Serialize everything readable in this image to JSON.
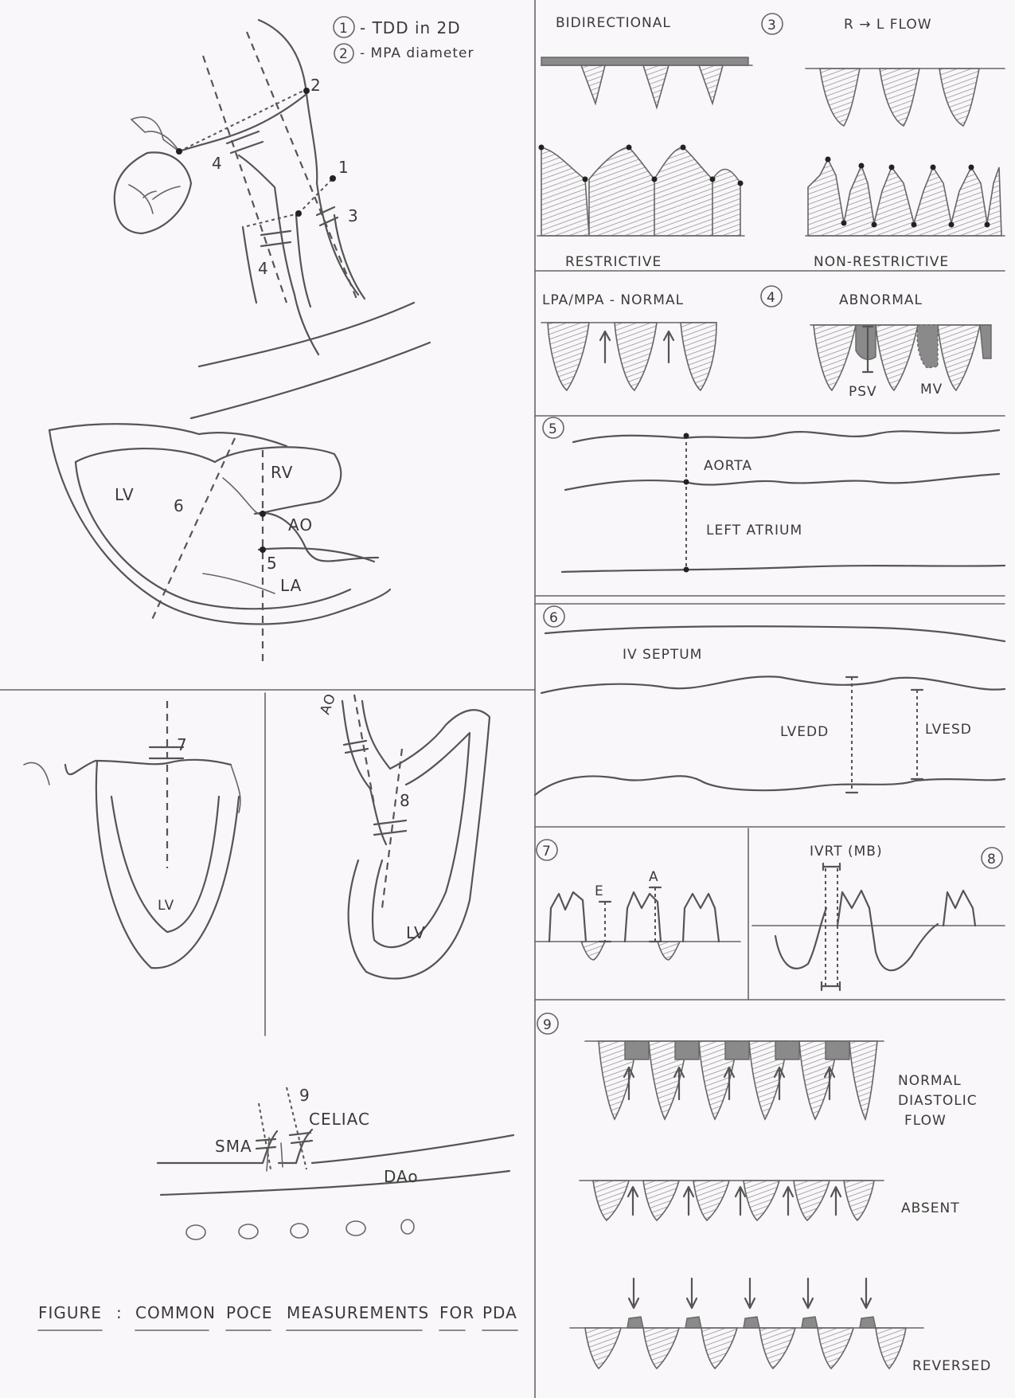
{
  "legend": {
    "item1_num": "1",
    "item1": "- TDD in 2D",
    "item2_num": "2",
    "item2": "- MPA diameter"
  },
  "arch_panel": {
    "m4a": "4",
    "m2": "2",
    "m1": "1",
    "m3": "3",
    "m4b": "4"
  },
  "heart_panel": {
    "lv": "LV",
    "rv": "RV",
    "ao": "AO",
    "la": "LA",
    "m6": "6",
    "m5": "5"
  },
  "apical_left": {
    "m7": "7",
    "lv": "LV"
  },
  "apical_right": {
    "ao": "AO",
    "m8": "8",
    "lv": "LV"
  },
  "abdominal": {
    "m9": "9",
    "celiac": "CELIAC",
    "sma": "SMA",
    "dao": "DAo"
  },
  "caption": {
    "w1": "FIGURE",
    "colon": ":",
    "w2": "COMMON",
    "w3": "POCE",
    "w4": "MEASUREMENTS",
    "w5": "FOR",
    "w6": "PDA"
  },
  "panel3": {
    "bidirectional": "BIDIRECTIONAL",
    "num": "3",
    "rl_flow": "R → L FLOW",
    "restrictive": "RESTRICTIVE",
    "non_restrictive": "NON-RESTRICTIVE"
  },
  "panel4": {
    "normal": "LPA/MPA - NORMAL",
    "num": "4",
    "abnormal": "ABNORMAL",
    "psv": "PSV",
    "mv": "MV"
  },
  "panel5": {
    "num": "5",
    "aorta": "AORTA",
    "left_atrium": "LEFT ATRIUM"
  },
  "panel6": {
    "num": "6",
    "iv_septum": "IV SEPTUM",
    "lvedd": "LVEDD",
    "lvesd": "LVESD"
  },
  "panel7": {
    "num": "7",
    "e": "E",
    "a": "A"
  },
  "panel8": {
    "ivrt": "IVRT (MB)",
    "num": "8"
  },
  "panel9": {
    "num": "9",
    "normal_1": "NORMAL",
    "normal_2": "DIASTOLIC",
    "normal_3": "FLOW",
    "absent": "ABSENT",
    "reversed": "REVERSED"
  },
  "colors": {
    "ink": "#555555",
    "paper": "#f9f7f9",
    "shade": "#8a8a8a"
  }
}
